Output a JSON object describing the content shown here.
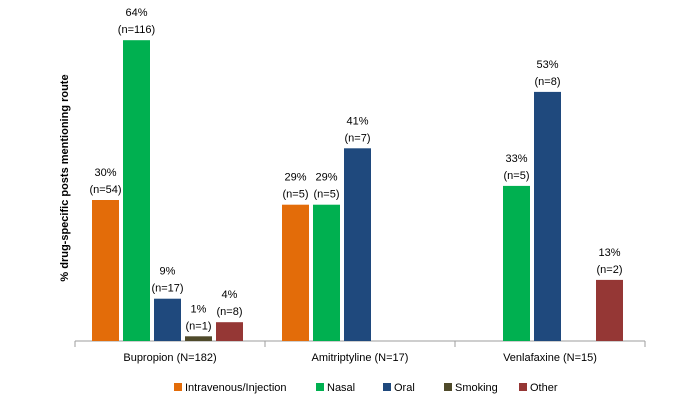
{
  "chart_data": {
    "type": "bar",
    "title": "",
    "xlabel": "",
    "ylabel": "% drug-specific posts mentioning route",
    "ylim": [
      0,
      70
    ],
    "grid": false,
    "legend_position": "bottom",
    "categories": [
      "Bupropion (N=182)",
      "Amitriptyline (N=17)",
      "Venlafaxine (N=15)"
    ],
    "series": [
      {
        "name": "Intravenous/Injection",
        "color": "#E36C09",
        "values": [
          30,
          29,
          null
        ],
        "labels": [
          [
            "30%",
            "(n=54)"
          ],
          [
            "29%",
            "(n=5)"
          ],
          null
        ]
      },
      {
        "name": "Nasal",
        "color": "#00B050",
        "values": [
          64,
          29,
          33
        ],
        "labels": [
          [
            "64%",
            "(n=116)"
          ],
          [
            "29%",
            "(n=5)"
          ],
          [
            "33%",
            "(n=5)"
          ]
        ]
      },
      {
        "name": "Oral",
        "color": "#1F497D",
        "values": [
          9,
          41,
          53
        ],
        "labels": [
          [
            "9%",
            "(n=17)"
          ],
          [
            "41%",
            "(n=7)"
          ],
          [
            "53%",
            "(n=8)"
          ]
        ]
      },
      {
        "name": "Smoking",
        "color": "#4F4A2A",
        "values": [
          1,
          null,
          null
        ],
        "labels": [
          [
            "1%",
            "(n=1)"
          ],
          null,
          null
        ]
      },
      {
        "name": "Other",
        "color": "#953735",
        "values": [
          4,
          null,
          13
        ],
        "labels": [
          [
            "4%",
            "(n=8)"
          ],
          null,
          [
            "13%",
            "(n=2)"
          ]
        ]
      }
    ]
  }
}
